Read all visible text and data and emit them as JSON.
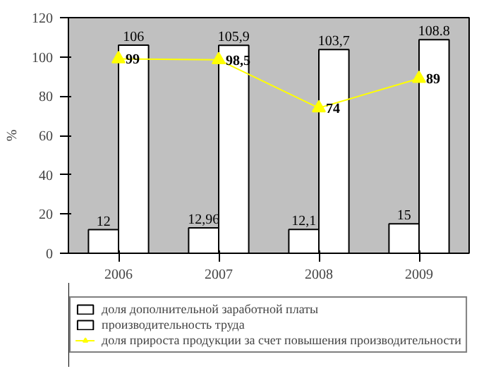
{
  "chart_data": {
    "type": "bar",
    "ylabel": "%",
    "categories": [
      "2006",
      "2007",
      "2008",
      "2009"
    ],
    "series": [
      {
        "name": "доля дополнительной заработной платы",
        "color": "#ffffff",
        "values": [
          12,
          12.96,
          12.1,
          15
        ],
        "value_labels": [
          "12",
          "12,96",
          "12,1",
          "15"
        ]
      },
      {
        "name": "производительность труда",
        "color": "#ffffff",
        "values": [
          106,
          105.9,
          103.7,
          108.8
        ],
        "value_labels": [
          "106",
          "105,9",
          "103,7",
          "108.8"
        ]
      },
      {
        "name": "доля прироста продукции за счет повышения производительности",
        "type": "line",
        "color": "#ffff00",
        "values": [
          99,
          98.5,
          74,
          89
        ],
        "value_labels": [
          "99",
          "98,5",
          "74",
          "89"
        ]
      }
    ],
    "marker": "triangle",
    "ylim": [
      0,
      120
    ],
    "yticks": [
      0,
      20,
      40,
      60,
      80,
      100,
      120
    ],
    "legend": "bottom"
  }
}
